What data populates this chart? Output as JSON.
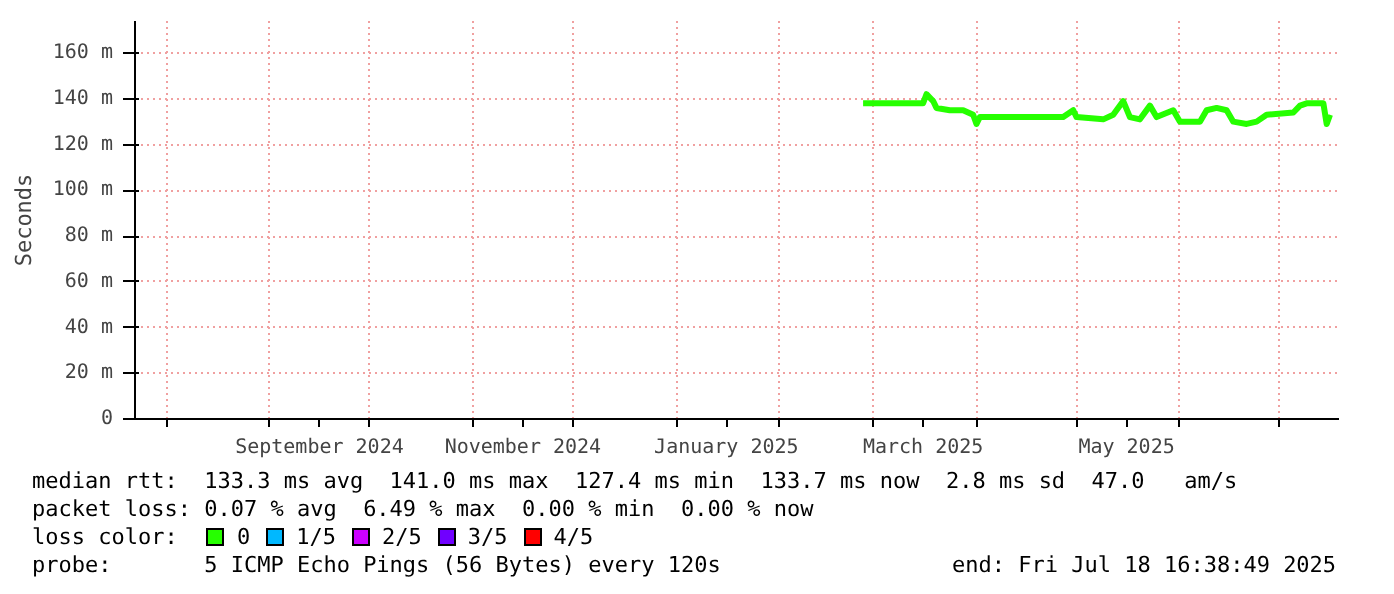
{
  "chart_data": {
    "type": "line",
    "ylabel": "Seconds",
    "xlim": [
      "2024-07-22T16:38",
      "2025-07-18T16:38"
    ],
    "xticks": [
      {
        "value": "2024-08-01",
        "label": null
      },
      {
        "value": "2024-09-01",
        "label": null
      },
      {
        "value": "2024-09-16",
        "label": "September 2024"
      },
      {
        "value": "2024-10-01",
        "label": null
      },
      {
        "value": "2024-11-01",
        "label": null
      },
      {
        "value": "2024-11-16",
        "label": "November 2024"
      },
      {
        "value": "2024-12-01",
        "label": null
      },
      {
        "value": "2025-01-01",
        "label": null
      },
      {
        "value": "2025-01-16",
        "label": "January 2025"
      },
      {
        "value": "2025-02-01",
        "label": null
      },
      {
        "value": "2025-03-01",
        "label": null
      },
      {
        "value": "2025-03-16",
        "label": "March 2025"
      },
      {
        "value": "2025-04-01",
        "label": null
      },
      {
        "value": "2025-05-01",
        "label": null
      },
      {
        "value": "2025-05-16",
        "label": "May 2025"
      },
      {
        "value": "2025-06-01",
        "label": null
      },
      {
        "value": "2025-07-01",
        "label": null
      }
    ],
    "ylim": [
      0,
      174
    ],
    "yticks": [
      {
        "value": 0,
        "label": "0"
      },
      {
        "value": 20,
        "label": "20 m"
      },
      {
        "value": 40,
        "label": "40 m"
      },
      {
        "value": 60,
        "label": "60 m"
      },
      {
        "value": 80,
        "label": "80 m"
      },
      {
        "value": 100,
        "label": "100 m"
      },
      {
        "value": 120,
        "label": "120 m"
      },
      {
        "value": 140,
        "label": "140 m"
      },
      {
        "value": 160,
        "label": "160 m"
      }
    ],
    "x": [
      "2025-02-26",
      "2025-03-16",
      "2025-03-17",
      "2025-03-19",
      "2025-03-20",
      "2025-03-24",
      "2025-03-28",
      "2025-03-31",
      "2025-04-01",
      "2025-04-02",
      "2025-04-07",
      "2025-04-27",
      "2025-04-30",
      "2025-05-01",
      "2025-05-09",
      "2025-05-12",
      "2025-05-15",
      "2025-05-17",
      "2025-05-20",
      "2025-05-23",
      "2025-05-25",
      "2025-05-30",
      "2025-06-01",
      "2025-06-07",
      "2025-06-09",
      "2025-06-12",
      "2025-06-15",
      "2025-06-17",
      "2025-06-21",
      "2025-06-24",
      "2025-06-27",
      "2025-07-05",
      "2025-07-07",
      "2025-07-09",
      "2025-07-14",
      "2025-07-15",
      "2025-07-16"
    ],
    "series": [
      {
        "name": "0",
        "color": "#26ff00",
        "values": [
          138,
          138,
          142,
          139,
          136,
          135,
          135,
          133,
          129,
          132,
          132,
          132,
          135,
          132,
          131,
          133,
          139,
          132,
          131,
          137,
          132,
          135,
          130,
          130,
          135,
          136,
          135,
          130,
          129,
          130,
          133,
          134,
          137,
          138,
          138,
          129,
          133
        ]
      },
      {
        "name": "1/5",
        "color": "#00b8ff",
        "values": [
          null,
          null,
          null,
          null,
          null,
          null,
          null,
          null,
          null,
          null,
          null,
          null,
          null,
          null,
          null,
          null,
          null,
          null,
          null,
          null,
          null,
          null,
          null,
          null,
          null,
          null,
          null,
          null,
          null,
          null,
          null,
          null,
          null,
          null,
          null,
          null,
          null
        ]
      },
      {
        "name": "2/5",
        "color": "#cc00ff",
        "values": [
          null,
          null,
          null,
          null,
          null,
          null,
          null,
          null,
          null,
          null,
          null,
          null,
          null,
          null,
          null,
          null,
          null,
          null,
          null,
          null,
          null,
          null,
          null,
          null,
          null,
          null,
          null,
          null,
          null,
          null,
          null,
          null,
          null,
          null,
          null,
          null,
          null
        ]
      },
      {
        "name": "3/5",
        "color": "#7000ff",
        "values": [
          null,
          null,
          null,
          null,
          null,
          null,
          null,
          null,
          null,
          null,
          null,
          null,
          null,
          null,
          null,
          null,
          null,
          null,
          null,
          null,
          null,
          null,
          null,
          null,
          null,
          null,
          null,
          null,
          null,
          null,
          null,
          null,
          null,
          null,
          null,
          null,
          null
        ]
      },
      {
        "name": "4/5",
        "color": "#ff0000",
        "values": [
          null,
          null,
          null,
          null,
          null,
          null,
          null,
          null,
          null,
          null,
          null,
          null,
          null,
          null,
          null,
          null,
          null,
          null,
          null,
          null,
          null,
          null,
          null,
          null,
          null,
          null,
          null,
          null,
          null,
          null,
          null,
          null,
          null,
          null,
          null,
          null,
          null
        ]
      }
    ],
    "legend": "bottom",
    "legend_title": "loss color:",
    "grid": true,
    "annotations": [
      "median rtt:  133.3 ms avg  141.0 ms max  127.4 ms min  133.7 ms now  2.8 ms sd  47.0   am/s",
      "packet loss: 0.07 % avg  6.49 % max  0.00 % min  0.00 % now",
      "probe:       5 ICMP Echo Pings (56 Bytes) every 120s",
      "end: Fri Jul 18 16:38:49 2025"
    ]
  }
}
